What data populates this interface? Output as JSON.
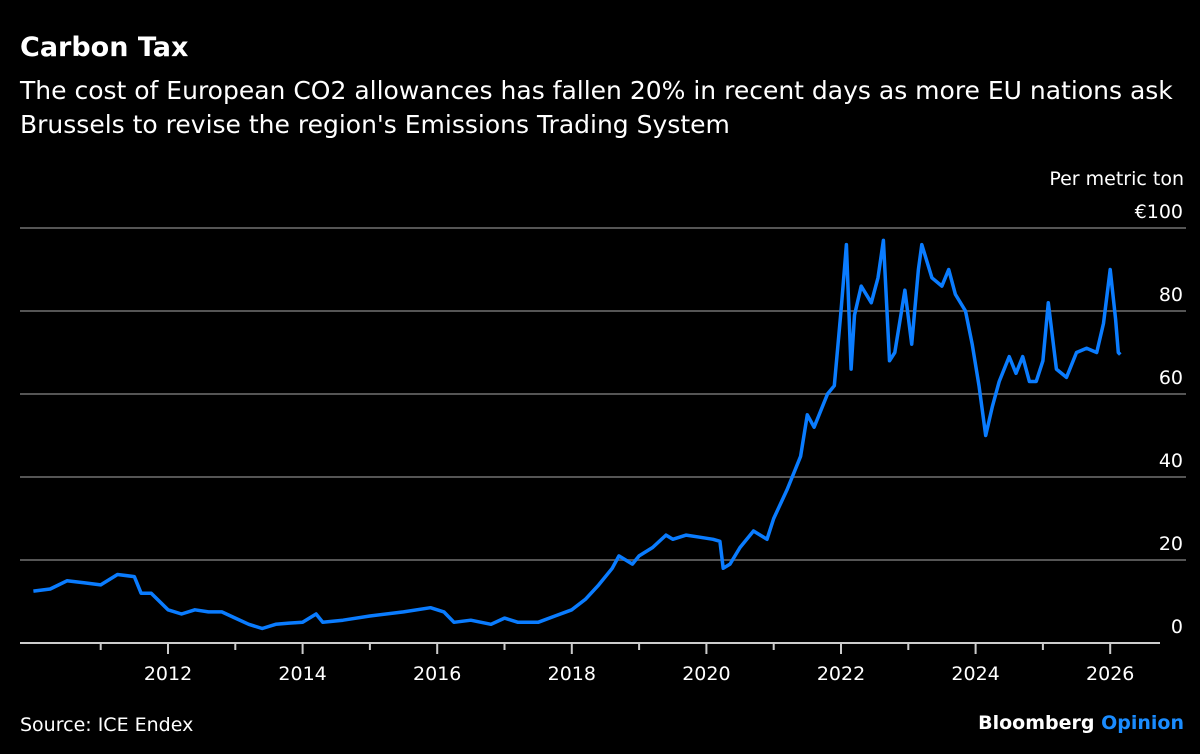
{
  "title": "Carbon Tax",
  "subtitle": "The cost of European CO2 allowances has fallen 20% in recent days as more EU nations ask Brussels to revise the region's Emissions Trading System",
  "source": "Source: ICE Endex",
  "brand": {
    "name": "Bloomberg",
    "suffix": "Opinion"
  },
  "chart_data": {
    "type": "line",
    "title": "Carbon Tax",
    "ylabel": "Per metric ton",
    "y_unit_prefix": "€",
    "ylim": [
      0,
      100
    ],
    "xlim": [
      2010,
      2026.3
    ],
    "yticks": [
      0,
      20,
      40,
      60,
      80,
      100
    ],
    "ytick_labels": [
      "0",
      "20",
      "40",
      "60",
      "80",
      "€100"
    ],
    "xticks": [
      2012,
      2014,
      2016,
      2018,
      2020,
      2022,
      2024,
      2026
    ],
    "xtick_labels": [
      "2012",
      "2014",
      "2016",
      "2018",
      "2020",
      "2022",
      "2024",
      "2026"
    ],
    "grid": "horizontal",
    "line_color": "#0a7cff",
    "x": [
      2010.0,
      2010.25,
      2010.5,
      2010.75,
      2011.0,
      2011.25,
      2011.5,
      2011.6,
      2011.75,
      2012.0,
      2012.2,
      2012.4,
      2012.6,
      2012.8,
      2013.0,
      2013.2,
      2013.4,
      2013.6,
      2013.8,
      2014.0,
      2014.2,
      2014.3,
      2014.6,
      2015.0,
      2015.5,
      2015.9,
      2016.1,
      2016.25,
      2016.5,
      2016.8,
      2017.0,
      2017.2,
      2017.5,
      2017.75,
      2018.0,
      2018.2,
      2018.4,
      2018.6,
      2018.7,
      2018.9,
      2019.0,
      2019.2,
      2019.4,
      2019.5,
      2019.7,
      2019.9,
      2020.1,
      2020.2,
      2020.25,
      2020.35,
      2020.5,
      2020.7,
      2020.9,
      2021.0,
      2021.2,
      2021.4,
      2021.5,
      2021.6,
      2021.8,
      2021.9,
      2022.0,
      2022.05,
      2022.08,
      2022.15,
      2022.2,
      2022.3,
      2022.45,
      2022.55,
      2022.63,
      2022.72,
      2022.8,
      2022.95,
      2023.05,
      2023.15,
      2023.2,
      2023.35,
      2023.5,
      2023.6,
      2023.7,
      2023.85,
      2023.95,
      2024.05,
      2024.15,
      2024.25,
      2024.35,
      2024.5,
      2024.6,
      2024.7,
      2024.8,
      2024.9,
      2025.0,
      2025.08,
      2025.2,
      2025.35,
      2025.5,
      2025.65,
      2025.8,
      2025.9,
      2026.0,
      2026.08,
      2026.12,
      2026.15
    ],
    "values": [
      12.5,
      13,
      15,
      14.5,
      14,
      16.5,
      16,
      12,
      12,
      8,
      7,
      8,
      7.5,
      7.5,
      6,
      4.5,
      3.5,
      4.5,
      4.8,
      5,
      7,
      5,
      5.5,
      6.5,
      7.5,
      8.5,
      7.5,
      5,
      5.5,
      4.5,
      6,
      5,
      5,
      6.5,
      8,
      10.5,
      14,
      18,
      21,
      19,
      21,
      23,
      26,
      25,
      26,
      25.5,
      25,
      24.5,
      18,
      19,
      23,
      27,
      25,
      30,
      37,
      45,
      55,
      52,
      60,
      62,
      80,
      90,
      96,
      66,
      79,
      86,
      82,
      88,
      97,
      68,
      70,
      85,
      72,
      90,
      96,
      88,
      86,
      90,
      84,
      80,
      72,
      62,
      50,
      57,
      63,
      69,
      65,
      69,
      63,
      63,
      68,
      82,
      66,
      64,
      70,
      71,
      70,
      77,
      90,
      78,
      70,
      69.5
    ]
  }
}
